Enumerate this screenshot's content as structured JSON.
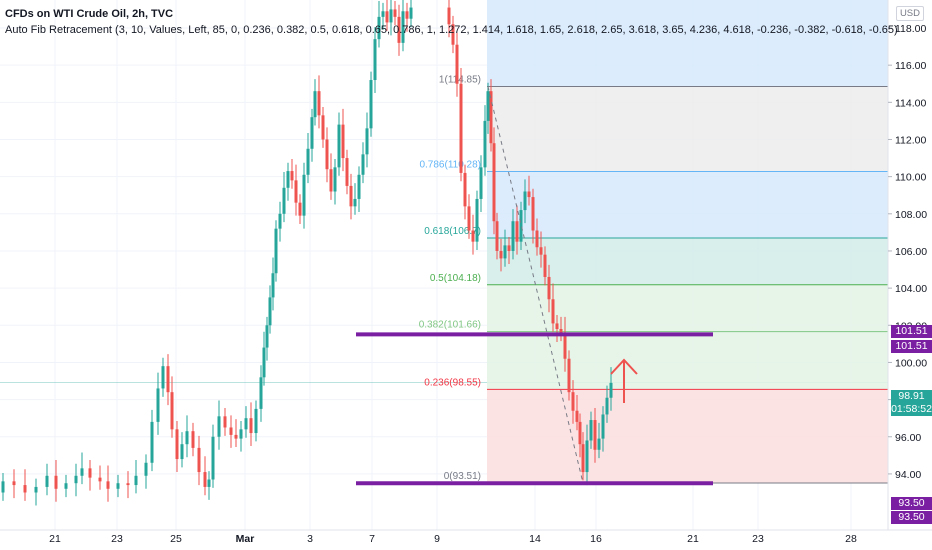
{
  "legend": {
    "symbol": "CFDs on WTI Crude Oil, 2h, TVC",
    "indicator": "Auto Fib Retracement (3, 10, Values, Left, 85, 0, 0.236, 0.382, 0.5, 0.618, 0.65, 0.786, 1, 1.272, 1.414, 1.618, 1.65, 2.618, 2.65, 3.618, 3.65, 4.236, 4.618, -0.236, -0.382, -0.618, -0.65)"
  },
  "currency": "USD",
  "price_boxes": {
    "upper_1": "101.51",
    "upper_2": "101.51",
    "last_price": "98.91",
    "countdown": "01:58:52",
    "lower_1": "93.50",
    "lower_2": "93.50"
  },
  "colors": {
    "up": "#26a69a",
    "down": "#ef5350",
    "purple": "#7b1fa2",
    "fib_blue": "#d6e9fb",
    "fib_gray": "#ececec",
    "fib_teal": "#d2ece9",
    "fib_green": "#e3f3e5",
    "fib_red": "#fbdede"
  },
  "chart_data": {
    "type": "candlestick",
    "y_axis": {
      "ticks": [
        "118.00",
        "116.00",
        "114.00",
        "112.00",
        "110.00",
        "108.00",
        "106.00",
        "104.00",
        "102.00",
        "100.00",
        "98.00",
        "96.00",
        "94.00"
      ],
      "range": [
        92.3,
        119.2
      ]
    },
    "x_axis": {
      "ticks": [
        "21",
        "23",
        "25",
        "Mar",
        "3",
        "7",
        "9",
        "14",
        "16",
        "21",
        "23",
        "28"
      ]
    },
    "fib_levels": [
      {
        "label": "1(114.85)",
        "ratio": 1,
        "price": 114.85,
        "color": "#787b86"
      },
      {
        "label": "0.786(110.28)",
        "ratio": 0.786,
        "price": 110.28,
        "color": "#64b5f6"
      },
      {
        "label": "0.618(106.7)",
        "ratio": 0.618,
        "price": 106.7,
        "color": "#26a69a"
      },
      {
        "label": "0.5(104.18)",
        "ratio": 0.5,
        "price": 104.18,
        "color": "#4caf50"
      },
      {
        "label": "0.382(101.66)",
        "ratio": 0.382,
        "price": 101.66,
        "color": "#81c784"
      },
      {
        "label": "0.236(98.55)",
        "ratio": 0.236,
        "price": 98.55,
        "color": "#f23645"
      },
      {
        "label": "0(93.51)",
        "ratio": 0,
        "price": 93.51,
        "color": "#787b86"
      }
    ],
    "horizontal_lines": [
      {
        "price": 101.51,
        "color": "#7b1fa2"
      },
      {
        "price": 93.5,
        "color": "#7b1fa2"
      }
    ],
    "last_price": 98.91,
    "annotation": {
      "type": "arrow-up",
      "color": "#ef5350"
    }
  }
}
